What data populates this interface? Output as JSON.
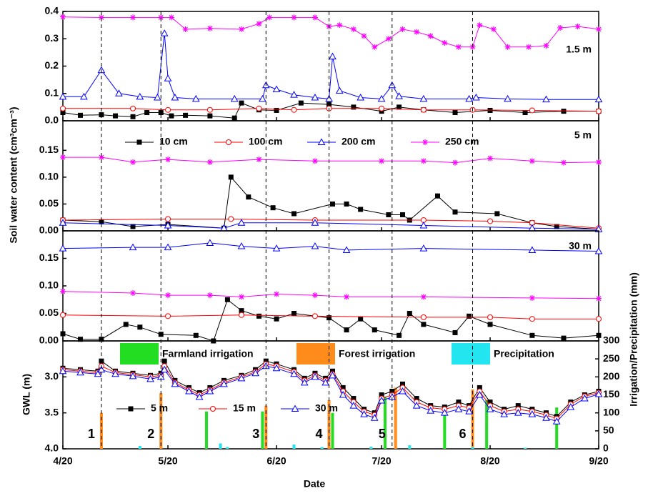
{
  "chart_data": [
    {
      "type": "line",
      "label": "1.5 m",
      "xlim": [
        "4/20",
        "9/20"
      ],
      "ylim": [
        0,
        0.4
      ],
      "yticks": [
        {
          "value": 0,
          "label": "0.0"
        },
        0.1,
        0.2,
        0.3,
        0.4
      ],
      "series": [
        {
          "color": "#000000",
          "marker": "square",
          "x": [
            "4/20",
            "4/25",
            "5/1",
            "5/5",
            "5/10",
            "5/14",
            "5/18",
            "5/21",
            "5/25",
            "6/1",
            "6/8",
            "6/10",
            "6/15",
            "6/20",
            "6/27",
            "7/5",
            "7/12",
            "7/20",
            "7/25",
            "8/1",
            "8/10",
            "8/20",
            "8/30",
            "9/10",
            "9/20"
          ],
          "values": [
            0.03,
            0.02,
            0.022,
            0.018,
            0.015,
            0.03,
            0.03,
            0.018,
            0.02,
            0.018,
            0.01,
            0.065,
            0.04,
            0.038,
            0.065,
            0.06,
            0.05,
            0.035,
            0.05,
            0.04,
            0.03,
            0.038,
            0.03,
            0.035,
            0.035
          ]
        },
        {
          "color": "#ff0000",
          "marker": "circle",
          "x": [
            "4/20",
            "5/10",
            "5/20",
            "6/1",
            "6/15",
            "6/25",
            "7/5",
            "7/20",
            "8/1",
            "8/15",
            "9/1",
            "9/20"
          ],
          "values": [
            0.045,
            0.045,
            0.04,
            0.04,
            0.045,
            0.04,
            0.045,
            0.045,
            0.04,
            0.04,
            0.038,
            0.035
          ]
        },
        {
          "color": "#0000ff",
          "marker": "triangle",
          "x": [
            "4/20",
            "4/26",
            "5/1",
            "5/6",
            "5/12",
            "5/17",
            "5/19",
            "5/20",
            "5/22",
            "5/28",
            "6/8",
            "6/16",
            "6/17",
            "6/20",
            "6/25",
            "7/1",
            "7/5",
            "7/6",
            "7/8",
            "7/14",
            "7/20",
            "7/23",
            "7/25",
            "8/1",
            "8/14",
            "8/16",
            "8/25",
            "9/5",
            "9/20"
          ],
          "values": [
            0.088,
            0.088,
            0.185,
            0.1,
            0.088,
            0.085,
            0.32,
            0.155,
            0.085,
            0.08,
            0.08,
            0.08,
            0.13,
            0.115,
            0.095,
            0.085,
            0.08,
            0.235,
            0.11,
            0.085,
            0.08,
            0.13,
            0.09,
            0.08,
            0.08,
            0.085,
            0.08,
            0.078,
            0.078
          ]
        },
        {
          "color": "#ff00ff",
          "marker": "star",
          "x": [
            "4/20",
            "5/1",
            "5/10",
            "5/18",
            "5/21",
            "5/25",
            "6/1",
            "6/10",
            "6/15",
            "6/18",
            "6/25",
            "7/1",
            "7/5",
            "7/8",
            "7/12",
            "7/15",
            "7/18",
            "7/22",
            "7/26",
            "7/30",
            "8/3",
            "8/7",
            "8/11",
            "8/15",
            "8/17",
            "8/21",
            "8/25",
            "8/31",
            "9/5",
            "9/9",
            "9/14",
            "9/20"
          ],
          "values": [
            0.38,
            0.378,
            0.378,
            0.378,
            0.378,
            0.335,
            0.338,
            0.335,
            0.355,
            0.378,
            0.378,
            0.378,
            0.345,
            0.35,
            0.335,
            0.31,
            0.27,
            0.3,
            0.335,
            0.325,
            0.31,
            0.285,
            0.27,
            0.27,
            0.35,
            0.335,
            0.27,
            0.27,
            0.275,
            0.34,
            0.345,
            0.335
          ]
        }
      ]
    },
    {
      "type": "line",
      "label": "5 m",
      "y_label": "Soil water content (cm³cm⁻³)",
      "xlim": [
        "4/20",
        "9/20"
      ],
      "ylim": [
        0,
        0.205
      ],
      "yticks": [
        {
          "value": 0,
          "label": "0.00"
        },
        0.05,
        {
          "value": 0.1,
          "label": "0.10"
        },
        0.15
      ],
      "legend": true,
      "series": [
        {
          "name": "10 cm",
          "color": "#000000",
          "marker": "square",
          "x": [
            "4/20",
            "5/1",
            "5/10",
            "5/20",
            "6/5",
            "6/7",
            "6/12",
            "6/19",
            "6/25",
            "7/6",
            "7/10",
            "7/14",
            "7/22",
            "7/26",
            "7/28",
            "8/5",
            "8/10",
            "8/22",
            "9/1",
            "9/8",
            "9/20"
          ],
          "values": [
            0.02,
            0.017,
            0.008,
            0.012,
            0.005,
            0.1,
            0.063,
            0.043,
            0.032,
            0.05,
            0.05,
            0.04,
            0.03,
            0.03,
            0.02,
            0.065,
            0.035,
            0.032,
            0.015,
            0.008,
            0.003
          ]
        },
        {
          "name": "100 cm",
          "color": "#ff0000",
          "marker": "circle",
          "x": [
            "4/20",
            "5/20",
            "6/7",
            "7/1",
            "8/1",
            "8/20",
            "9/1",
            "9/20"
          ],
          "values": [
            0.02,
            0.022,
            0.022,
            0.02,
            0.02,
            0.018,
            0.015,
            0.005
          ]
        },
        {
          "name": "200 cm",
          "color": "#0000ff",
          "marker": "triangle",
          "x": [
            "4/20",
            "5/20",
            "6/5",
            "6/10",
            "7/1",
            "8/1",
            "9/1",
            "9/20"
          ],
          "values": [
            0.015,
            0.01,
            0.005,
            0.015,
            0.015,
            0.01,
            0.005,
            0.003
          ]
        },
        {
          "name": "250 cm",
          "color": "#ff00ff",
          "marker": "star",
          "x": [
            "4/20",
            "5/1",
            "5/10",
            "5/20",
            "6/1",
            "6/15",
            "7/1",
            "7/20",
            "8/1",
            "8/10",
            "8/20",
            "9/1",
            "9/10",
            "9/20"
          ],
          "values": [
            0.137,
            0.137,
            0.128,
            0.133,
            0.128,
            0.133,
            0.13,
            0.13,
            0.13,
            0.127,
            0.135,
            0.13,
            0.127,
            0.128
          ]
        }
      ]
    },
    {
      "type": "line",
      "label": "30 m",
      "xlim": [
        "4/20",
        "9/20"
      ],
      "ylim": [
        0,
        0.2
      ],
      "yticks": [
        {
          "value": 0,
          "label": "0.00"
        },
        0.05,
        {
          "value": 0.1,
          "label": "0.10"
        },
        0.15
      ],
      "series": [
        {
          "color": "#000000",
          "marker": "square",
          "x": [
            "4/20",
            "4/25",
            "5/1",
            "5/8",
            "5/12",
            "5/18",
            "5/28",
            "6/2",
            "6/6",
            "6/10",
            "6/15",
            "6/20",
            "6/25",
            "7/5",
            "7/10",
            "7/14",
            "7/18",
            "7/25",
            "7/28",
            "8/1",
            "8/10",
            "8/14",
            "8/20",
            "9/1",
            "9/10",
            "9/20"
          ],
          "values": [
            0.013,
            0.003,
            0.003,
            0.03,
            0.025,
            0.012,
            0.01,
            0,
            0.075,
            0.055,
            0.045,
            0.04,
            0.05,
            0.042,
            0.02,
            0.04,
            0.02,
            0.01,
            0.05,
            0.03,
            0.015,
            0.045,
            0.03,
            0.01,
            0.005,
            0.01
          ]
        },
        {
          "color": "#ff0000",
          "marker": "circle",
          "x": [
            "4/20",
            "5/20",
            "6/10",
            "7/1",
            "8/1",
            "8/20",
            "9/1",
            "9/20"
          ],
          "values": [
            0.047,
            0.045,
            0.047,
            0.045,
            0.043,
            0.043,
            0.04,
            0.04
          ]
        },
        {
          "color": "#0000ff",
          "marker": "triangle",
          "x": [
            "4/20",
            "5/10",
            "5/20",
            "6/1",
            "6/10",
            "6/20",
            "7/1",
            "7/10",
            "8/1",
            "9/1",
            "9/20"
          ],
          "values": [
            0.168,
            0.17,
            0.17,
            0.178,
            0.172,
            0.168,
            0.172,
            0.165,
            0.168,
            0.165,
            0.163
          ]
        },
        {
          "color": "#ff00ff",
          "marker": "star",
          "x": [
            "4/20",
            "5/10",
            "5/20",
            "6/1",
            "6/10",
            "6/20",
            "7/1",
            "7/10",
            "8/1",
            "9/1",
            "9/20"
          ],
          "values": [
            0.09,
            0.087,
            0.083,
            0.083,
            0.08,
            0.085,
            0.083,
            0.08,
            0.08,
            0.078,
            0.077
          ]
        }
      ]
    },
    {
      "type": "line",
      "x_label": "Date",
      "y_label": "GWL (m)",
      "y2_label": "Irrigation/Precipitation (mm)",
      "xlim": [
        "4/20",
        "9/20"
      ],
      "xticks": [
        "4/20",
        "5/20",
        "6/20",
        "7/20",
        "8/20",
        "9/20"
      ],
      "ylim": [
        2.5,
        4.0
      ],
      "y_reversed": true,
      "yticks": [
        {
          "value": 3,
          "label": "3.0"
        },
        3.5,
        {
          "value": 4,
          "label": "4.0"
        }
      ],
      "y2lim": [
        0,
        300
      ],
      "y2ticks": [
        0,
        50,
        100,
        150,
        200,
        250,
        300
      ],
      "legend": true,
      "events": [
        {
          "x": "5/1",
          "label": "1"
        },
        {
          "x": "5/18",
          "label": "2"
        },
        {
          "x": "6/17",
          "label": "3"
        },
        {
          "x": "7/5",
          "label": "4"
        },
        {
          "x": "7/23",
          "label": "5"
        },
        {
          "x": "8/15",
          "label": "6"
        }
      ],
      "series": [
        {
          "name": "5 m",
          "color": "#000000",
          "marker": "square",
          "x": [
            "4/20",
            "4/25",
            "4/30",
            "5/1",
            "5/5",
            "5/10",
            "5/15",
            "5/18",
            "5/19",
            "5/22",
            "5/26",
            "5/29",
            "6/1",
            "6/5",
            "6/10",
            "6/14",
            "6/17",
            "6/20",
            "6/25",
            "6/28",
            "7/1",
            "7/4",
            "7/6",
            "7/9",
            "7/12",
            "7/15",
            "7/18",
            "7/20",
            "7/23",
            "7/26",
            "7/30",
            "8/3",
            "8/7",
            "8/11",
            "8/14",
            "8/17",
            "8/20",
            "8/24",
            "8/28",
            "9/1",
            "9/5",
            "9/8",
            "9/12",
            "9/16",
            "9/20"
          ],
          "values": [
            2.88,
            2.9,
            2.92,
            2.78,
            2.92,
            2.95,
            2.98,
            2.95,
            2.78,
            3.05,
            3.15,
            3.22,
            3.15,
            3.05,
            2.98,
            2.9,
            2.78,
            2.82,
            2.9,
            3.02,
            2.95,
            3.02,
            2.92,
            3.15,
            3.3,
            3.45,
            3.5,
            3.25,
            3.2,
            3.1,
            3.3,
            3.4,
            3.42,
            3.35,
            3.4,
            3.15,
            3.35,
            3.45,
            3.4,
            3.45,
            3.5,
            3.55,
            3.35,
            3.25,
            3.2
          ]
        },
        {
          "name": "15 m",
          "color": "#ff0000",
          "marker": "circle",
          "x": [
            "4/20",
            "4/25",
            "4/30",
            "5/1",
            "5/5",
            "5/10",
            "5/15",
            "5/18",
            "5/19",
            "5/22",
            "5/26",
            "5/29",
            "6/1",
            "6/5",
            "6/10",
            "6/14",
            "6/17",
            "6/20",
            "6/25",
            "6/28",
            "7/1",
            "7/4",
            "7/6",
            "7/9",
            "7/12",
            "7/15",
            "7/18",
            "7/20",
            "7/23",
            "7/26",
            "7/30",
            "8/3",
            "8/7",
            "8/11",
            "8/14",
            "8/17",
            "8/20",
            "8/24",
            "8/28",
            "9/1",
            "9/5",
            "9/8",
            "9/12",
            "9/16",
            "9/20"
          ],
          "values": [
            2.9,
            2.92,
            2.94,
            2.85,
            2.94,
            2.97,
            3.0,
            2.98,
            2.85,
            3.08,
            3.18,
            3.25,
            3.18,
            3.08,
            3.0,
            2.93,
            2.82,
            2.85,
            2.93,
            3.05,
            2.98,
            3.05,
            2.96,
            3.2,
            3.35,
            3.48,
            3.53,
            3.3,
            3.25,
            3.15,
            3.35,
            3.43,
            3.45,
            3.4,
            3.43,
            3.2,
            3.4,
            3.48,
            3.45,
            3.48,
            3.53,
            3.58,
            3.38,
            3.27,
            3.22
          ]
        },
        {
          "name": "30 m",
          "color": "#0000ff",
          "marker": "triangle",
          "x": [
            "4/20",
            "4/25",
            "4/30",
            "5/1",
            "5/5",
            "5/10",
            "5/15",
            "5/18",
            "5/19",
            "5/22",
            "5/26",
            "5/29",
            "6/1",
            "6/5",
            "6/10",
            "6/14",
            "6/17",
            "6/20",
            "6/25",
            "6/28",
            "7/1",
            "7/4",
            "7/6",
            "7/9",
            "7/12",
            "7/15",
            "7/18",
            "7/20",
            "7/23",
            "7/26",
            "7/30",
            "8/3",
            "8/7",
            "8/11",
            "8/14",
            "8/17",
            "8/20",
            "8/24",
            "8/28",
            "9/1",
            "9/5",
            "9/8",
            "9/12",
            "9/16",
            "9/20"
          ],
          "values": [
            2.92,
            2.94,
            2.96,
            2.9,
            2.96,
            2.99,
            3.03,
            3.0,
            2.9,
            3.1,
            3.2,
            3.28,
            3.2,
            3.1,
            3.02,
            2.95,
            2.85,
            2.88,
            2.96,
            3.08,
            3.0,
            3.08,
            2.98,
            3.25,
            3.4,
            3.52,
            3.57,
            3.33,
            3.28,
            3.2,
            3.4,
            3.47,
            3.5,
            3.45,
            3.48,
            3.25,
            3.45,
            3.52,
            3.5,
            3.52,
            3.57,
            3.62,
            3.42,
            3.3,
            3.24
          ]
        },
        {
          "name": "Farmland irrigation",
          "type": "bar",
          "axis": "y2",
          "color": "#22dd22",
          "x": [
            "5/31",
            "6/16",
            "7/6",
            "7/21",
            "8/7",
            "8/19",
            "9/8"
          ],
          "values": [
            104,
            104,
            100,
            145,
            105,
            135,
            115
          ]
        },
        {
          "name": "Forest irrigation",
          "type": "bar",
          "axis": "y2",
          "color": "#ff8c1a",
          "x": [
            "5/1",
            "5/18",
            "6/17",
            "7/5",
            "7/24",
            "8/15"
          ],
          "values": [
            100,
            155,
            120,
            135,
            170,
            165
          ]
        },
        {
          "name": "Precipitation",
          "type": "bar",
          "axis": "y2",
          "color": "#22e5f0",
          "x": [
            "5/12",
            "6/4",
            "6/6",
            "6/25",
            "7/3",
            "7/17",
            "7/28",
            "8/15",
            "8/30"
          ],
          "values": [
            8,
            15,
            5,
            12,
            5,
            6,
            10,
            5,
            3
          ]
        }
      ]
    }
  ]
}
